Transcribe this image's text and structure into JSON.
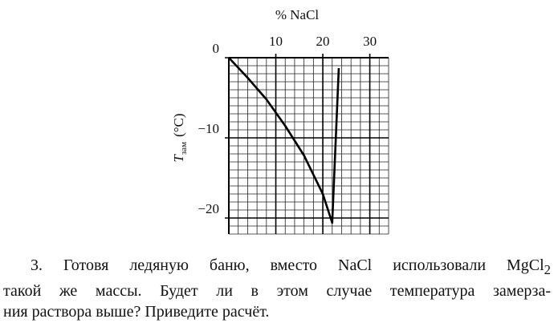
{
  "chart_data": {
    "type": "line",
    "x_label": "% NaCl",
    "y_label": "T",
    "y_label_sub": "зам",
    "y_label_unit": "(°C)",
    "x": [
      0,
      4,
      8,
      12,
      16,
      20,
      22,
      23.4
    ],
    "series": [
      {
        "color": "#000000",
        "values": [
          0,
          -2.5,
          -5.2,
          -8.5,
          -12.2,
          -17,
          -20.6,
          -1.3
        ]
      }
    ],
    "xlim": [
      0,
      34
    ],
    "ylim": [
      -22,
      0
    ],
    "xticks": [
      10,
      20,
      30
    ],
    "yticks": [
      0,
      {
        "value": -10,
        "label": "−10"
      },
      {
        "value": -20,
        "label": "−20"
      }
    ],
    "grid": true,
    "minor_grid": {
      "x": 2,
      "y": 1
    }
  },
  "text": {
    "lines": [
      "3. Готовя ледяную баню, вместо NaCl использовали MgCl",
      "такой же массы. Будет ли в этом случае температура замерза-",
      "ния раствора выше? Приведите расчёт."
    ],
    "sub": "2"
  }
}
